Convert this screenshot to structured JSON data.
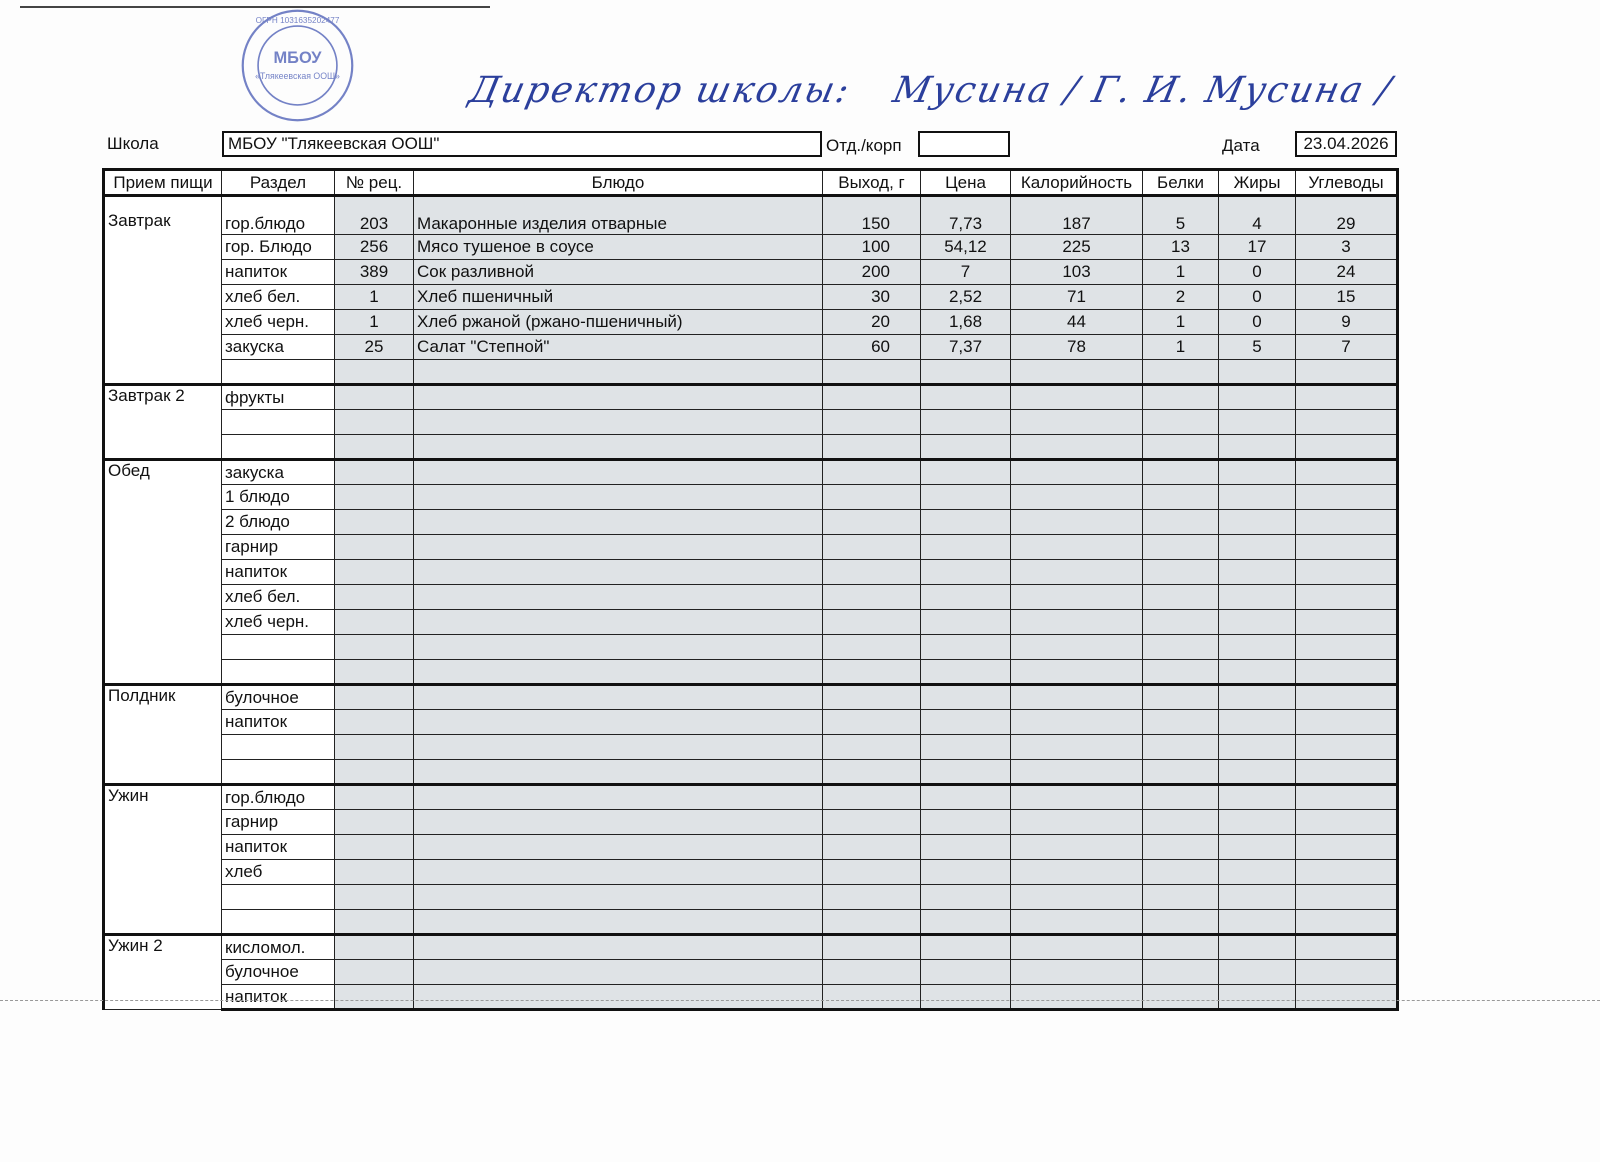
{
  "signature": {
    "text": "Директор школы: Мусина / Г. И. Мусина /"
  },
  "stamp": {
    "text": "МБОУ «Тлякеевская ООШ»",
    "ogrn": "ОГРН 1031635202477",
    "color": "#3b4fb0"
  },
  "header": {
    "school_label": "Школа",
    "school_value": "МБОУ \"Тлякеевская ООШ\"",
    "dept_label": "Отд./корп",
    "dept_value": "",
    "date_label": "Дата",
    "date_value": "23.04.2026"
  },
  "columns": [
    "Прием пищи",
    "Раздел",
    "№ рец.",
    "Блюдо",
    "Выход, г",
    "Цена",
    "Калорийность",
    "Белки",
    "Жиры",
    "Углеводы"
  ],
  "groups": [
    {
      "meal": "Завтрак",
      "rows": [
        [
          "гор.блюдо",
          "203",
          "Макаронные изделия отварные",
          "150",
          "7,73",
          "187",
          "5",
          "4",
          "29"
        ],
        [
          "гор. Блюдо",
          "256",
          "Мясо тушеное в соусе",
          "100",
          "54,12",
          "225",
          "13",
          "17",
          "3"
        ],
        [
          "напиток",
          "389",
          "Сок разливной",
          "200",
          "7",
          "103",
          "1",
          "0",
          "24"
        ],
        [
          "хлеб бел.",
          "1",
          "Хлеб пшеничный",
          "30",
          "2,52",
          "71",
          "2",
          "0",
          "15"
        ],
        [
          "хлеб черн.",
          "1",
          "Хлеб ржаной (ржано-пшеничный)",
          "20",
          "1,68",
          "44",
          "1",
          "0",
          "9"
        ],
        [
          "закуска",
          "25",
          "Салат \"Степной\"",
          "60",
          "7,37",
          "78",
          "1",
          "5",
          "7"
        ],
        [
          "",
          "",
          "",
          "",
          "",
          "",
          "",
          "",
          ""
        ]
      ]
    },
    {
      "meal": "Завтрак 2",
      "rows": [
        [
          "фрукты",
          "",
          "",
          "",
          "",
          "",
          "",
          "",
          ""
        ],
        [
          "",
          "",
          "",
          "",
          "",
          "",
          "",
          "",
          ""
        ],
        [
          "",
          "",
          "",
          "",
          "",
          "",
          "",
          "",
          ""
        ]
      ]
    },
    {
      "meal": "Обед",
      "rows": [
        [
          "закуска"
        ],
        [
          "1 блюдо"
        ],
        [
          "2 блюдо"
        ],
        [
          "гарнир"
        ],
        [
          "напиток"
        ],
        [
          "хлеб бел."
        ],
        [
          "хлеб черн."
        ],
        [
          ""
        ],
        [
          ""
        ]
      ]
    },
    {
      "meal": "Полдник",
      "rows": [
        [
          "булочное"
        ],
        [
          "напиток"
        ],
        [
          ""
        ],
        [
          ""
        ]
      ]
    },
    {
      "meal": "Ужин",
      "rows": [
        [
          "гор.блюдо"
        ],
        [
          "гарнир"
        ],
        [
          "напиток"
        ],
        [
          "хлеб"
        ],
        [
          ""
        ],
        [
          ""
        ]
      ]
    },
    {
      "meal": "Ужин 2",
      "rows": [
        [
          "кисломол."
        ],
        [
          "булочное"
        ],
        [
          "напиток"
        ]
      ]
    }
  ]
}
